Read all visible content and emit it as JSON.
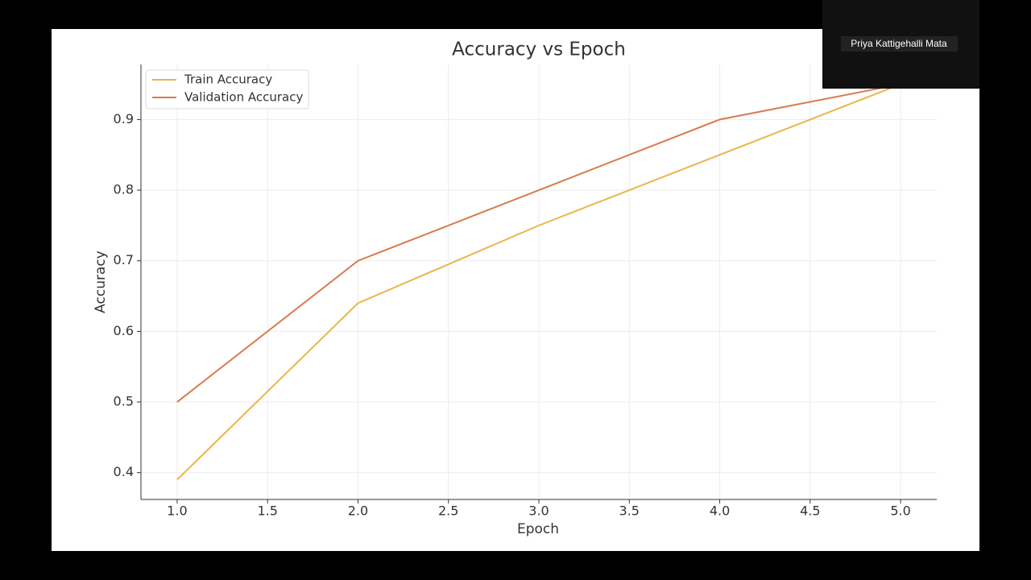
{
  "chart_data": {
    "type": "line",
    "title": "Accuracy vs Epoch",
    "x_label": "Epoch",
    "y_label": "Accuracy",
    "x": [
      1,
      2,
      3,
      4,
      5
    ],
    "series": [
      {
        "name": "Train Accuracy",
        "color": "#ebb54a",
        "values": [
          0.39,
          0.64,
          0.75,
          0.85,
          0.95
        ]
      },
      {
        "name": "Validation Accuracy",
        "color": "#d97a4e",
        "values": [
          0.5,
          0.7,
          0.8,
          0.9,
          0.95
        ]
      }
    ],
    "xlim": [
      0.8,
      5.2
    ],
    "xticks": [
      {
        "value": 1,
        "label": "1.0"
      },
      {
        "value": 1.5,
        "label": "1.5"
      },
      {
        "value": 2,
        "label": "2.0"
      },
      {
        "value": 2.5,
        "label": "2.5"
      },
      {
        "value": 3,
        "label": "3.0"
      },
      {
        "value": 3.5,
        "label": "3.5"
      },
      {
        "value": 4,
        "label": "4.0"
      },
      {
        "value": 4.5,
        "label": "4.5"
      },
      {
        "value": 5,
        "label": "5.0"
      }
    ],
    "ylim": [
      0.362,
      0.978
    ],
    "yticks": [
      0.4,
      0.5,
      0.6,
      0.7,
      0.8,
      0.9
    ],
    "grid": true,
    "legend": "upper left"
  },
  "participant_name": "Priya Kattigehalli Mata"
}
